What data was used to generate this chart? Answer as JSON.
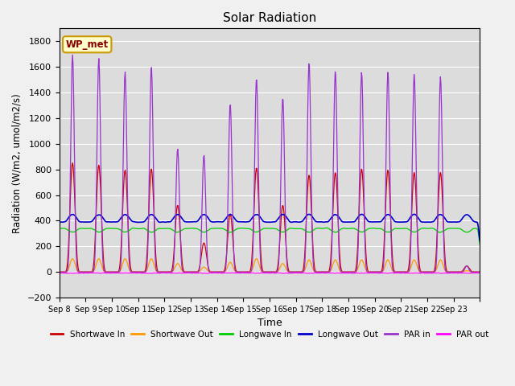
{
  "title": "Solar Radiation",
  "ylabel": "Radiation (W/m2, umol/m2/s)",
  "xlabel": "Time",
  "ylim": [
    -200,
    1900
  ],
  "background_color": "#dcdcdc",
  "fig_facecolor": "#f0f0f0",
  "annotation": "WP_met",
  "xtick_labels": [
    "Sep 8",
    "Sep 9",
    "Sep 10",
    "Sep 11",
    "Sep 12",
    "Sep 13",
    "Sep 14",
    "Sep 15",
    "Sep 16",
    "Sep 17",
    "Sep 18",
    "Sep 19",
    "Sep 20",
    "Sep 21",
    "Sep 22",
    "Sep 23"
  ],
  "legend": [
    {
      "label": "Shortwave In",
      "color": "#cc0000"
    },
    {
      "label": "Shortwave Out",
      "color": "#ff9900"
    },
    {
      "label": "Longwave In",
      "color": "#00cc00"
    },
    {
      "label": "Longwave Out",
      "color": "#0000cc"
    },
    {
      "label": "PAR in",
      "color": "#9933cc"
    },
    {
      "label": "PAR out",
      "color": "#ff00ff"
    }
  ],
  "sw_in_peaks": [
    900,
    880,
    840,
    850,
    550,
    240,
    480,
    860,
    550,
    800,
    820,
    850,
    840,
    820,
    820,
    50
  ],
  "sw_out_peaks": [
    110,
    110,
    110,
    110,
    70,
    40,
    80,
    110,
    70,
    100,
    100,
    100,
    100,
    100,
    100,
    10
  ],
  "par_in_peaks": [
    1780,
    1750,
    1640,
    1680,
    1010,
    960,
    1380,
    1590,
    1430,
    1720,
    1650,
    1640,
    1640,
    1620,
    1600,
    50
  ],
  "lw_in_base": 340,
  "lw_out_base": 390,
  "n_days": 16,
  "figsize": [
    6.4,
    4.8
  ],
  "dpi": 100
}
